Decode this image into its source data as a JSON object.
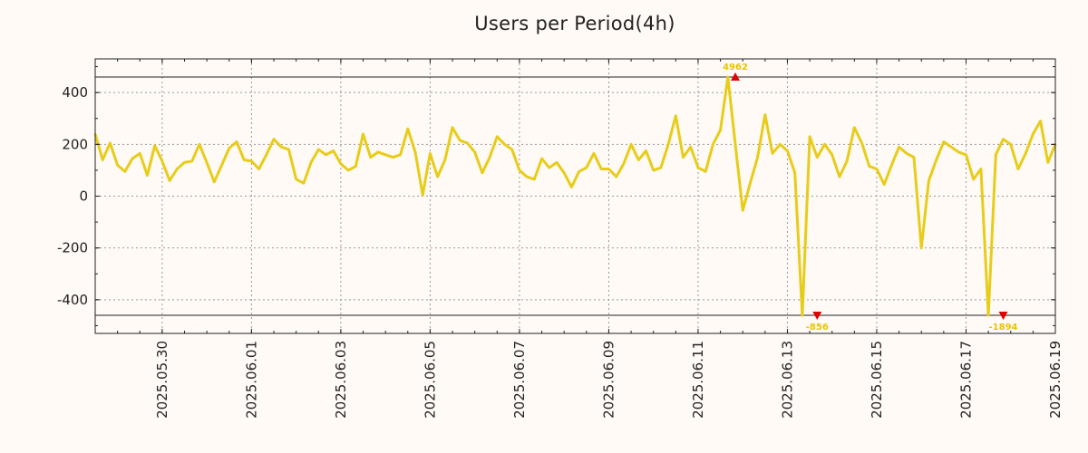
{
  "chart_data": {
    "type": "line",
    "title": "Users per Period(4h)",
    "xlabel": "",
    "ylabel": "",
    "x_range": [
      "2025-05-28T12:00",
      "2025-06-19T00:00"
    ],
    "ylim": [
      -530,
      530
    ],
    "clip_limits": [
      460,
      -460
    ],
    "grid": true,
    "line_color": "#e8cc1a",
    "marker_color": "#e00000",
    "annotation_color": "#e8c400",
    "y_ticks": [
      400,
      200,
      0,
      -200,
      -400
    ],
    "y_tick_labels": [
      "400",
      "200",
      "0",
      "-200",
      "-400"
    ],
    "x_ticks": [
      {
        "x": "2025-05-30",
        "label": "2025.05.30"
      },
      {
        "x": "2025-06-01",
        "label": "2025.06.01"
      },
      {
        "x": "2025-06-03",
        "label": "2025.06.03"
      },
      {
        "x": "2025-06-05",
        "label": "2025.06.05"
      },
      {
        "x": "2025-06-07",
        "label": "2025.06.07"
      },
      {
        "x": "2025-06-09",
        "label": "2025.06.09"
      },
      {
        "x": "2025-06-11",
        "label": "2025.06.11"
      },
      {
        "x": "2025-06-13",
        "label": "2025.06.13"
      },
      {
        "x": "2025-06-15",
        "label": "2025.06.15"
      },
      {
        "x": "2025-06-17",
        "label": "2025.06.17"
      },
      {
        "x": "2025-06-19",
        "label": "2025.06.19"
      }
    ],
    "series": [
      {
        "x": [
          "2025-05-28T12:00",
          "2025-05-28T16:00",
          "2025-05-28T20:00",
          "2025-05-29T00:00",
          "2025-05-29T04:00",
          "2025-05-29T08:00",
          "2025-05-29T12:00",
          "2025-05-29T16:00",
          "2025-05-29T20:00",
          "2025-05-30T00:00",
          "2025-05-30T04:00",
          "2025-05-30T08:00",
          "2025-05-30T12:00",
          "2025-05-30T16:00",
          "2025-05-30T20:00",
          "2025-05-31T00:00",
          "2025-05-31T04:00",
          "2025-05-31T08:00",
          "2025-05-31T12:00",
          "2025-05-31T16:00",
          "2025-05-31T20:00",
          "2025-06-01T00:00",
          "2025-06-01T04:00",
          "2025-06-01T08:00",
          "2025-06-01T12:00",
          "2025-06-01T16:00",
          "2025-06-01T20:00",
          "2025-06-02T00:00",
          "2025-06-02T04:00",
          "2025-06-02T08:00",
          "2025-06-02T12:00",
          "2025-06-02T16:00",
          "2025-06-02T20:00",
          "2025-06-03T00:00",
          "2025-06-03T04:00",
          "2025-06-03T08:00",
          "2025-06-03T12:00",
          "2025-06-03T16:00",
          "2025-06-03T20:00",
          "2025-06-04T00:00",
          "2025-06-04T04:00",
          "2025-06-04T08:00",
          "2025-06-04T12:00",
          "2025-06-04T16:00",
          "2025-06-04T20:00",
          "2025-06-05T00:00",
          "2025-06-05T04:00",
          "2025-06-05T08:00",
          "2025-06-05T12:00",
          "2025-06-05T16:00",
          "2025-06-05T20:00",
          "2025-06-06T00:00",
          "2025-06-06T04:00",
          "2025-06-06T08:00",
          "2025-06-06T12:00",
          "2025-06-06T16:00",
          "2025-06-06T20:00",
          "2025-06-07T00:00",
          "2025-06-07T04:00",
          "2025-06-07T08:00",
          "2025-06-07T12:00",
          "2025-06-07T16:00",
          "2025-06-07T20:00",
          "2025-06-08T00:00",
          "2025-06-08T04:00",
          "2025-06-08T08:00",
          "2025-06-08T12:00",
          "2025-06-08T16:00",
          "2025-06-08T20:00",
          "2025-06-09T00:00",
          "2025-06-09T04:00",
          "2025-06-09T08:00",
          "2025-06-09T12:00",
          "2025-06-09T16:00",
          "2025-06-09T20:00",
          "2025-06-10T00:00",
          "2025-06-10T04:00",
          "2025-06-10T08:00",
          "2025-06-10T12:00",
          "2025-06-10T16:00",
          "2025-06-10T20:00",
          "2025-06-11T00:00",
          "2025-06-11T04:00",
          "2025-06-11T08:00",
          "2025-06-11T12:00",
          "2025-06-11T16:00",
          "2025-06-11T20:00",
          "2025-06-12T00:00",
          "2025-06-12T04:00",
          "2025-06-12T08:00",
          "2025-06-12T12:00",
          "2025-06-12T16:00",
          "2025-06-12T20:00",
          "2025-06-13T00:00",
          "2025-06-13T04:00",
          "2025-06-13T08:00",
          "2025-06-13T12:00",
          "2025-06-13T16:00",
          "2025-06-13T20:00",
          "2025-06-14T00:00",
          "2025-06-14T04:00",
          "2025-06-14T08:00",
          "2025-06-14T12:00",
          "2025-06-14T16:00",
          "2025-06-14T20:00",
          "2025-06-15T00:00",
          "2025-06-15T04:00",
          "2025-06-15T08:00",
          "2025-06-15T12:00",
          "2025-06-15T16:00",
          "2025-06-15T20:00",
          "2025-06-16T00:00",
          "2025-06-16T04:00",
          "2025-06-16T08:00",
          "2025-06-16T12:00",
          "2025-06-16T16:00",
          "2025-06-16T20:00",
          "2025-06-17T00:00",
          "2025-06-17T04:00",
          "2025-06-17T08:00",
          "2025-06-17T12:00",
          "2025-06-17T16:00",
          "2025-06-17T20:00",
          "2025-06-18T00:00",
          "2025-06-18T04:00",
          "2025-06-18T08:00",
          "2025-06-18T12:00",
          "2025-06-18T16:00",
          "2025-06-18T20:00",
          "2025-06-19T00:00"
        ],
        "y": [
          240,
          140,
          205,
          120,
          95,
          145,
          165,
          80,
          195,
          135,
          60,
          105,
          130,
          135,
          200,
          130,
          55,
          120,
          185,
          210,
          140,
          135,
          105,
          160,
          220,
          190,
          180,
          65,
          50,
          130,
          180,
          160,
          175,
          125,
          100,
          115,
          240,
          150,
          170,
          160,
          150,
          160,
          260,
          170,
          5,
          165,
          75,
          140,
          265,
          215,
          205,
          170,
          90,
          150,
          230,
          200,
          180,
          100,
          75,
          65,
          145,
          110,
          130,
          90,
          35,
          95,
          110,
          165,
          105,
          105,
          75,
          125,
          200,
          140,
          175,
          100,
          110,
          200,
          310,
          150,
          190,
          110,
          95,
          200,
          255,
          460,
          200,
          -55,
          50,
          150,
          315,
          165,
          200,
          175,
          90,
          -460,
          230,
          150,
          200,
          160,
          75,
          135,
          265,
          205,
          115,
          105,
          45,
          120,
          190,
          165,
          150,
          -200,
          60,
          140,
          210,
          190,
          170,
          160,
          65,
          105,
          -460,
          160,
          220,
          200,
          105,
          165,
          240,
          290,
          130,
          200
        ]
      }
    ],
    "annotations": [
      {
        "x": "2025-06-11T20:00",
        "y": 460,
        "label": "4962",
        "marker": "triangle-up",
        "position": "above"
      },
      {
        "x": "2025-06-13T16:00",
        "y": -460,
        "label": "-856",
        "marker": "triangle-down",
        "position": "below"
      },
      {
        "x": "2025-06-17T20:00",
        "y": -460,
        "label": "-1894",
        "marker": "triangle-down",
        "position": "below"
      }
    ]
  }
}
